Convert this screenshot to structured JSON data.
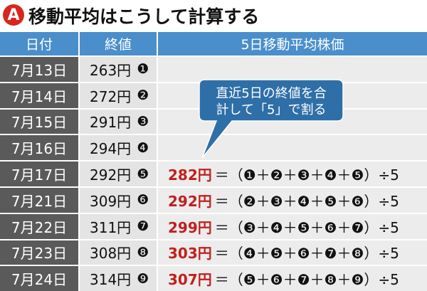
{
  "header": {
    "badge": "A",
    "title": "移動平均はこうして計算する"
  },
  "table": {
    "columns": [
      "日付",
      "終値",
      "5日移動平均株価"
    ],
    "rows": [
      {
        "date": "7月13日",
        "close": "263円",
        "marker": "❶"
      },
      {
        "date": "7月14日",
        "close": "272円",
        "marker": "❷"
      },
      {
        "date": "7月15日",
        "close": "291円",
        "marker": "❸"
      },
      {
        "date": "7月16日",
        "close": "294円",
        "marker": "❹"
      },
      {
        "date": "7月17日",
        "close": "292円",
        "marker": "❺",
        "average": "282円",
        "formula": "＝（❶＋❷＋❸＋❹＋❺）÷5"
      },
      {
        "date": "7月21日",
        "close": "309円",
        "marker": "❻",
        "average": "292円",
        "formula": "＝（❷＋❸＋❹＋❺＋❻）÷5"
      },
      {
        "date": "7月22日",
        "close": "311円",
        "marker": "❼",
        "average": "299円",
        "formula": "＝（❸＋❹＋❺＋❻＋❼）÷5"
      },
      {
        "date": "7月23日",
        "close": "308円",
        "marker": "❽",
        "average": "303円",
        "formula": "＝（❹＋❺＋❻＋❼＋❽）÷5"
      },
      {
        "date": "7月24日",
        "close": "314円",
        "marker": "❾",
        "average": "307円",
        "formula": "＝（❺＋❻＋❼＋❽＋❾）÷5"
      }
    ]
  },
  "callout": {
    "lines": [
      "直近5日の終値を合",
      "計して「5」で割る"
    ]
  }
}
